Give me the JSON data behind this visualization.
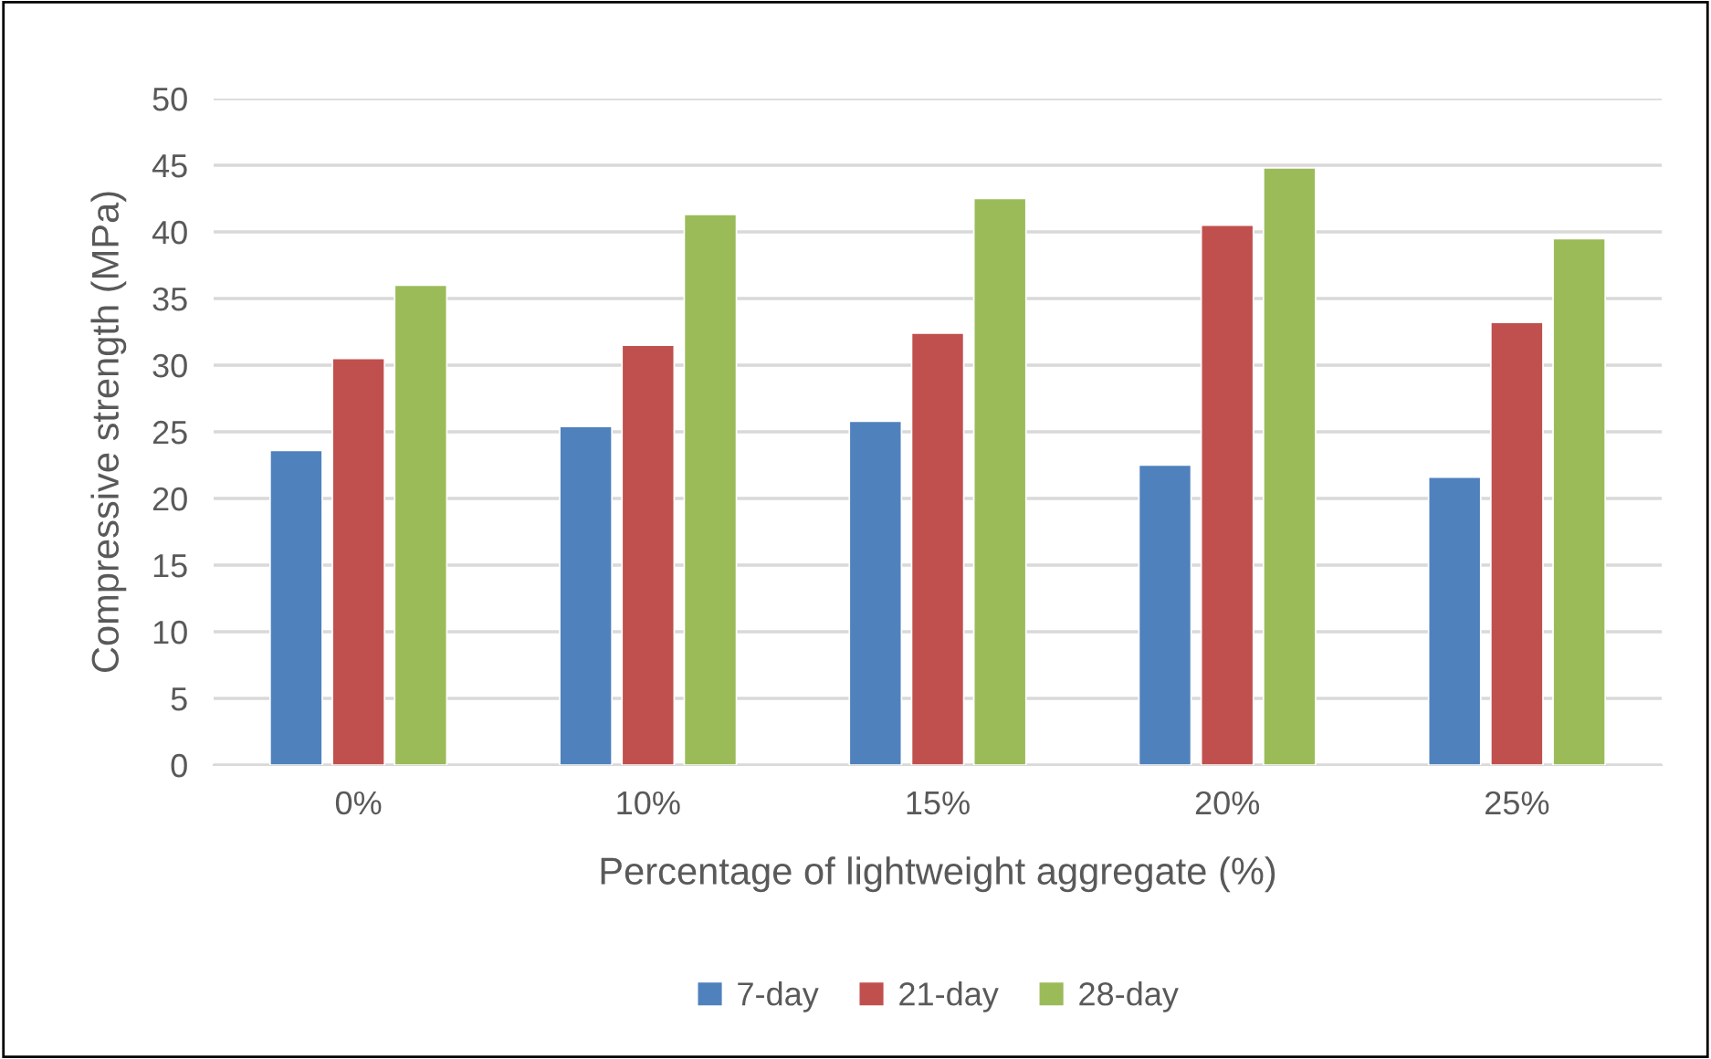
{
  "chart_data": {
    "type": "bar",
    "xlabel": "Percentage of lightweight aggregate (%)",
    "ylabel": "Compressive strength (MPa)",
    "categories": [
      "0%",
      "10%",
      "15%",
      "20%",
      "25%"
    ],
    "series": [
      {
        "name": "7-day",
        "color": "#4f81bd",
        "values": [
          23.6,
          25.4,
          25.8,
          22.5,
          21.6
        ]
      },
      {
        "name": "21-day",
        "color": "#c0504d",
        "values": [
          30.5,
          31.5,
          32.4,
          40.5,
          33.2
        ]
      },
      {
        "name": "28-day",
        "color": "#9bbb59",
        "values": [
          36.0,
          41.3,
          42.5,
          44.8,
          39.5
        ]
      }
    ],
    "ylim": [
      0,
      50
    ],
    "yticks": [
      0,
      5,
      10,
      15,
      20,
      25,
      30,
      35,
      40,
      45,
      50
    ],
    "grid": "y",
    "legend": "bottom"
  }
}
